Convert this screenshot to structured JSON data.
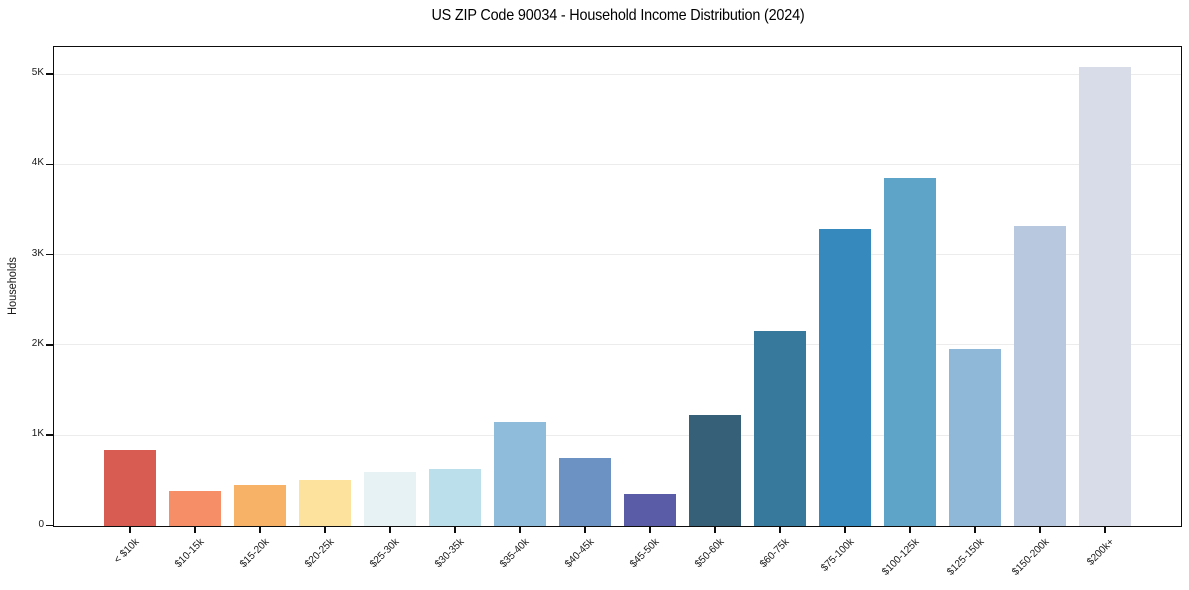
{
  "chart_data": {
    "type": "bar",
    "title": "US ZIP Code 90034 - Household Income Distribution (2024)",
    "xlabel": "",
    "ylabel": "Households",
    "categories": [
      "< $10k",
      "$10-15k",
      "$15-20k",
      "$20-25k",
      "$25-30k",
      "$30-35k",
      "$35-40k",
      "$40-45k",
      "$45-50k",
      "$50-60k",
      "$60-75k",
      "$75-100k",
      "$100-125k",
      "$125-150k",
      "$150-200k",
      "$200k+"
    ],
    "values": [
      845,
      385,
      455,
      510,
      595,
      630,
      1150,
      755,
      355,
      1230,
      2160,
      3285,
      3855,
      1955,
      3325,
      5085
    ],
    "bar_colors": [
      "#d85c52",
      "#f68e68",
      "#f8b267",
      "#fce29c",
      "#e7f2f4",
      "#bcdfec",
      "#90bcdc",
      "#6b92c3",
      "#5a5ca8",
      "#365f78",
      "#37789d",
      "#3589bd",
      "#5da4c8",
      "#8fb7d8",
      "#b8c8df",
      "#d8dbe8"
    ],
    "yticks": {
      "values": [
        0,
        1000,
        2000,
        3000,
        4000,
        5000
      ],
      "labels": [
        "0",
        "1K",
        "2K",
        "3K",
        "4K",
        "5K"
      ]
    },
    "ylim": [
      0,
      5330
    ],
    "grid": "horizontal",
    "legend": "none",
    "colors": {
      "background": "#ffffff",
      "spine": "#0d0d0d",
      "gridline": "#ececec",
      "tick_text": "#1a1a1a"
    }
  }
}
